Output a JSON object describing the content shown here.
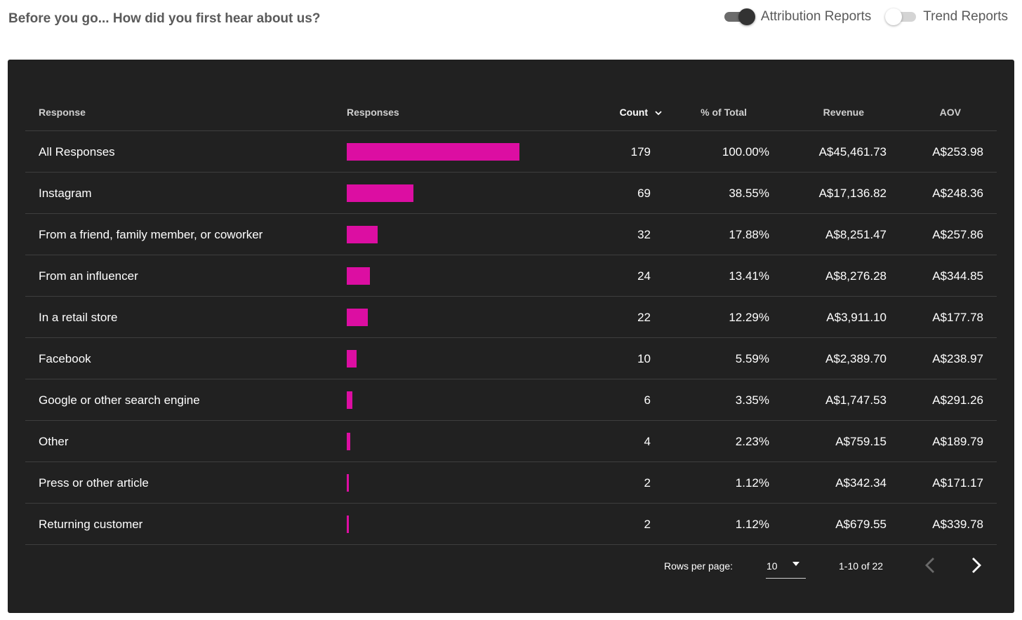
{
  "header": {
    "title": "Before you go... How did you first hear about us?",
    "toggles": [
      {
        "label": "Attribution Reports",
        "on": true
      },
      {
        "label": "Trend Reports",
        "on": false
      }
    ]
  },
  "table": {
    "columns": {
      "response": "Response",
      "responses": "Responses",
      "count": "Count",
      "pct": "% of Total",
      "revenue": "Revenue",
      "aov": "AOV"
    },
    "sort_icon": "chevron-down-icon",
    "bar_color": "#dc0ea2",
    "rows": [
      {
        "response": "All Responses",
        "count": "179",
        "pct": "100.00%",
        "revenue": "A$45,461.73",
        "aov": "A$253.98"
      },
      {
        "response": "Instagram",
        "count": "69",
        "pct": "38.55%",
        "revenue": "A$17,136.82",
        "aov": "A$248.36"
      },
      {
        "response": "From a friend, family member, or coworker",
        "count": "32",
        "pct": "17.88%",
        "revenue": "A$8,251.47",
        "aov": "A$257.86"
      },
      {
        "response": "From an influencer",
        "count": "24",
        "pct": "13.41%",
        "revenue": "A$8,276.28",
        "aov": "A$344.85"
      },
      {
        "response": "In a retail store",
        "count": "22",
        "pct": "12.29%",
        "revenue": "A$3,911.10",
        "aov": "A$177.78"
      },
      {
        "response": "Facebook",
        "count": "10",
        "pct": "5.59%",
        "revenue": "A$2,389.70",
        "aov": "A$238.97"
      },
      {
        "response": "Google or other search engine",
        "count": "6",
        "pct": "3.35%",
        "revenue": "A$1,747.53",
        "aov": "A$291.26"
      },
      {
        "response": "Other",
        "count": "4",
        "pct": "2.23%",
        "revenue": "A$759.15",
        "aov": "A$189.79"
      },
      {
        "response": "Press or other article",
        "count": "2",
        "pct": "1.12%",
        "revenue": "A$342.34",
        "aov": "A$171.17"
      },
      {
        "response": "Returning customer",
        "count": "2",
        "pct": "1.12%",
        "revenue": "A$679.55",
        "aov": "A$339.78"
      }
    ]
  },
  "pagination": {
    "rows_per_page_label": "Rows per page:",
    "rows_per_page_value": "10",
    "range": "1-10 of 22",
    "prev_icon": "chevron-left-icon",
    "next_icon": "chevron-right-icon"
  }
}
